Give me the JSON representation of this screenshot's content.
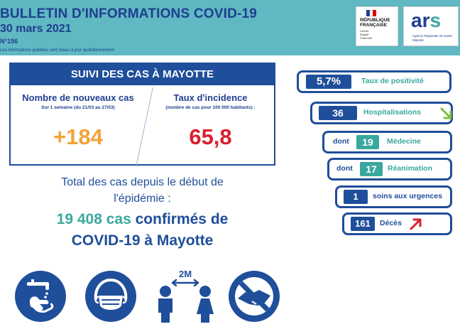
{
  "header": {
    "title": "BULLETIN D'INFORMATIONS COVID-19",
    "date": "30 mars 2021",
    "number": "N°156",
    "note": "Les informations publiées sont mises à jour quotidiennement",
    "rf_title_1": "RÉPUBLIQUE",
    "rf_title_2": "FRANÇAISE",
    "rf_motto_1": "Liberté",
    "rf_motto_2": "Égalité",
    "rf_motto_3": "Fraternité",
    "ars_logo": "ars",
    "ars_sub": "Agence Régionale de Santé Mayotte"
  },
  "suivi": {
    "title": "SUIVI DES CAS À MAYOTTE",
    "new_cases_label": "Nombre de nouveaux cas",
    "new_cases_period": "Sur 1 semaine (du 21/03 au 27/03)",
    "new_cases_value": "+184",
    "incidence_label": "Taux d'incidence",
    "incidence_unit": "(nombre de cas pour 100 000 habitants) :",
    "incidence_value": "65,8"
  },
  "total": {
    "line1": "Total des cas depuis le début de",
    "line2": "l'épidémie :",
    "count": "19 408 cas",
    "line3_rest": " confirmés de",
    "line4": "COVID-19 à Mayotte"
  },
  "stats": {
    "positivity_value": "5,7%",
    "positivity_label": "Taux de positivité",
    "hosp_value": "36",
    "hosp_label": "Hospitalisations",
    "hosp_trend": "down",
    "medecine_prefix": "dont",
    "medecine_value": "19",
    "medecine_label": "Médecine",
    "rea_prefix": "dont",
    "rea_value": "17",
    "rea_label": "Réanimation",
    "urgences_value": "1",
    "urgences_label": "soins aux urgences",
    "deces_value": "161",
    "deces_label": "Décès",
    "deces_trend": "up"
  },
  "icons": {
    "distance_label": "2M",
    "names": [
      "hand-washing-icon",
      "face-mask-icon",
      "social-distancing-icon",
      "no-handshake-icon"
    ]
  },
  "colors": {
    "header_bg": "#5fb8c2",
    "navy": "#1f4e9a",
    "teal": "#3aa79f",
    "orange": "#f2a33a",
    "red": "#d8202f",
    "trend_down": "#7cbf3a",
    "trend_up": "#d8202f"
  }
}
